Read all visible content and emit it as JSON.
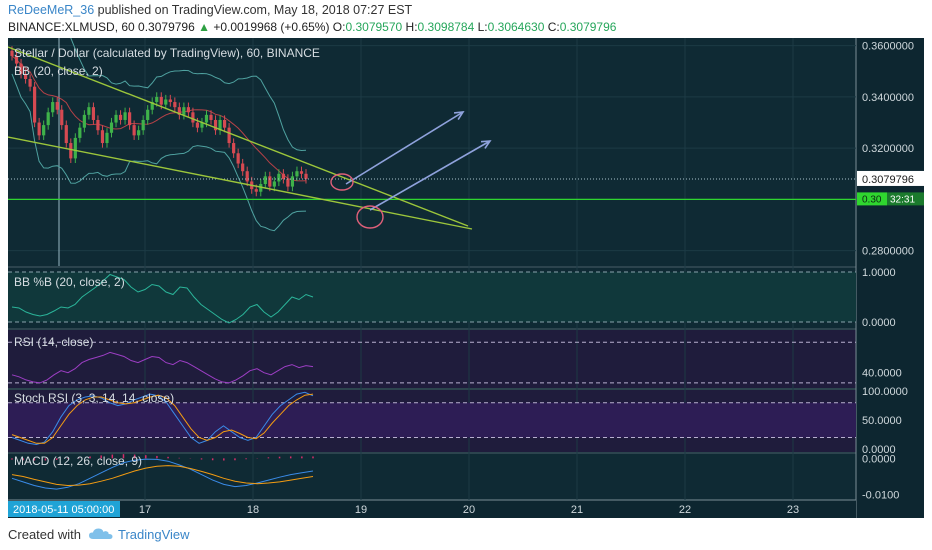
{
  "header": {
    "author": "ReDeeMeR_36",
    "published_text": " published on TradingView.com, May 18, 2018 07:27 EST",
    "symbol": "BINANCE:XLMUSD, 60",
    "price": "0.3079796",
    "change": "+0.0019968 (+0.65%)",
    "o_label": "O:",
    "o_value": "0.3079570",
    "h_label": "H:",
    "h_value": "0.3098784",
    "l_label": "L:",
    "l_value": "0.3064630",
    "c_label": "C:",
    "c_value": "0.3079796"
  },
  "colors": {
    "background": "#0f2a34",
    "candle_up": "#3fb24a",
    "candle_down": "#d64a52",
    "bb_band": "#4fa2a0",
    "bb_basis": "#e0474c",
    "trendline": "#9cc63b",
    "arrow": "#8fa2dc",
    "circle": "#e0607a",
    "support": "#2fd62f",
    "percent_b": "#2bb59a",
    "rsi": "#9c3ec4",
    "stoch_k": "#3a8be8",
    "stoch_d": "#f39c12",
    "macd": "#3a8be8",
    "signal": "#f39c12",
    "hist": "#d62e6a"
  },
  "pane_labels": {
    "main": "Stellar / Dollar (calculated by TradingView), 60, BINANCE",
    "bb": "BB (20, close, 2)",
    "pctb": "BB %B (20, close, 2)",
    "rsi": "RSI (14, close)",
    "stoch": "Stoch RSI (3, 3, 14, 14, close)",
    "macd": "MACD (12, 26, close, 9)"
  },
  "chart_data": [
    {
      "type": "candlestick",
      "title": "Stellar / Dollar (calculated by TradingView), 60, BINANCE",
      "x_ticks": [
        "17",
        "18",
        "19",
        "20",
        "21",
        "22",
        "23"
      ],
      "cursor_time_label": "2018-05-11 05:00:00",
      "y_ticks": [
        "0.3600000",
        "0.3400000",
        "0.3200000",
        "0.2800000"
      ],
      "ylim": [
        0.274,
        0.363
      ],
      "last_price_label": "0.3079796",
      "support_label": "0.30",
      "countdown_label": "32:31",
      "support_level": 0.3,
      "candle_values": [
        0.356,
        0.353,
        0.349,
        0.347,
        0.344,
        0.33,
        0.325,
        0.329,
        0.334,
        0.338,
        0.335,
        0.329,
        0.322,
        0.316,
        0.324,
        0.328,
        0.333,
        0.336,
        0.331,
        0.327,
        0.322,
        0.326,
        0.33,
        0.333,
        0.331,
        0.334,
        0.329,
        0.325,
        0.327,
        0.331,
        0.335,
        0.338,
        0.34,
        0.337,
        0.339,
        0.338,
        0.336,
        0.333,
        0.336,
        0.334,
        0.33,
        0.328,
        0.33,
        0.333,
        0.331,
        0.327,
        0.331,
        0.328,
        0.322,
        0.318,
        0.314,
        0.311,
        0.307,
        0.304,
        0.303,
        0.306,
        0.309,
        0.305,
        0.307,
        0.31,
        0.308,
        0.305,
        0.309,
        0.311,
        0.31,
        0.308
      ]
    },
    {
      "type": "line",
      "title": "BB %B (20, close, 2)",
      "y_ticks": [
        "1.0000",
        "0.0000"
      ],
      "ylim": [
        -0.12,
        1.08
      ],
      "values": [
        0.3,
        0.28,
        0.2,
        0.15,
        0.12,
        0.15,
        0.22,
        0.3,
        0.28,
        0.35,
        0.5,
        0.6,
        0.7,
        0.82,
        0.95,
        0.9,
        0.85,
        0.7,
        0.6,
        0.65,
        0.75,
        0.72,
        0.6,
        0.55,
        0.7,
        0.68,
        0.5,
        0.35,
        0.25,
        0.15,
        0.05,
        -0.02,
        0.05,
        0.15,
        0.3,
        0.35,
        0.2,
        0.1,
        0.2,
        0.35,
        0.5,
        0.45,
        0.55,
        0.5
      ]
    },
    {
      "type": "line",
      "title": "RSI (14, close)",
      "y_ticks": [
        "40.0000"
      ],
      "ylim": [
        25,
        82
      ],
      "values": [
        38,
        36,
        33,
        31,
        30,
        33,
        38,
        42,
        40,
        44,
        50,
        53,
        55,
        57,
        60,
        58,
        56,
        52,
        50,
        53,
        56,
        55,
        50,
        48,
        52,
        50,
        46,
        42,
        38,
        34,
        31,
        30,
        33,
        37,
        42,
        44,
        40,
        38,
        42,
        46,
        48,
        45,
        47,
        46
      ]
    },
    {
      "type": "line",
      "title": "Stoch RSI (3, 3, 14, 14, close)",
      "y_ticks": [
        "100.0000",
        "50.0000",
        "0.0000"
      ],
      "ylim": [
        -5,
        102
      ],
      "series": [
        {
          "name": "K",
          "values": [
            20,
            15,
            10,
            8,
            12,
            30,
            55,
            75,
            85,
            90,
            92,
            88,
            80,
            75,
            78,
            85,
            90,
            95,
            92,
            80,
            60,
            40,
            20,
            10,
            15,
            30,
            40,
            30,
            20,
            15,
            20,
            40,
            60,
            75,
            85,
            95,
            98,
            92
          ]
        },
        {
          "name": "D",
          "values": [
            25,
            20,
            15,
            10,
            10,
            20,
            40,
            60,
            75,
            85,
            90,
            90,
            85,
            80,
            78,
            80,
            85,
            90,
            93,
            88,
            75,
            55,
            35,
            20,
            15,
            20,
            30,
            33,
            27,
            20,
            18,
            28,
            45,
            60,
            75,
            85,
            93,
            95
          ]
        }
      ]
    },
    {
      "type": "line",
      "title": "MACD (12, 26, close, 9)",
      "y_ticks": [
        "0.0000",
        "-0.0100"
      ],
      "ylim": [
        -0.0115,
        0.0012
      ],
      "series": [
        {
          "name": "MACD",
          "values": [
            -0.0055,
            -0.0065,
            -0.0075,
            -0.0082,
            -0.0085,
            -0.008,
            -0.007,
            -0.0055,
            -0.004,
            -0.0025,
            -0.0012,
            -0.0005,
            -0.0002,
            -0.0003,
            -0.0008,
            -0.0018,
            -0.003,
            -0.0045,
            -0.006,
            -0.0072,
            -0.0078,
            -0.0075,
            -0.0068,
            -0.006,
            -0.0052,
            -0.0045,
            -0.004,
            -0.0035
          ]
        },
        {
          "name": "Signal",
          "values": [
            -0.0045,
            -0.005,
            -0.0058,
            -0.0065,
            -0.0072,
            -0.0075,
            -0.0074,
            -0.007,
            -0.0063,
            -0.0055,
            -0.0045,
            -0.0035,
            -0.0027,
            -0.0022,
            -0.002,
            -0.0022,
            -0.0028,
            -0.0036,
            -0.0045,
            -0.0055,
            -0.0063,
            -0.0068,
            -0.007,
            -0.0068,
            -0.0065,
            -0.006,
            -0.0055,
            -0.005
          ]
        }
      ]
    }
  ],
  "footer": {
    "created_with": "Created with",
    "brand": "TradingView"
  }
}
